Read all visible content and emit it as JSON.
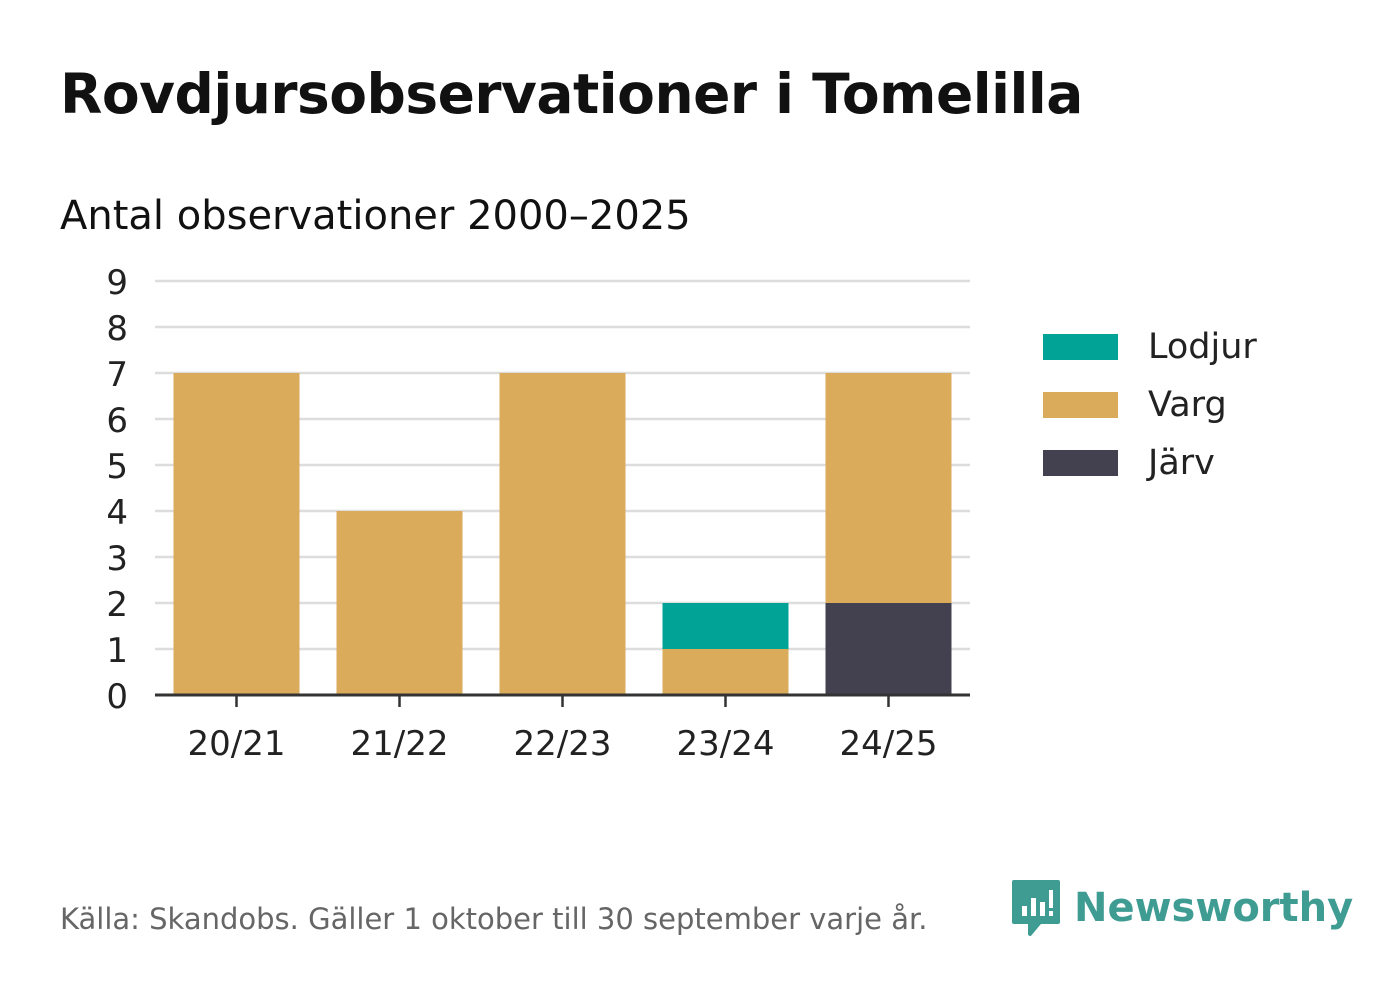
{
  "title": "Rovdjursobservationer i Tomelilla",
  "subtitle": "Antal observationer 2000–2025",
  "source": "Källa: Skandobs. Gäller 1 oktober till 30 september varje år.",
  "brand": "Newsworthy",
  "legend": [
    {
      "label": "Lodjur",
      "color": "#00a396"
    },
    {
      "label": "Varg",
      "color": "#d9ab5a"
    },
    {
      "label": "Järv",
      "color": "#434150"
    }
  ],
  "chart_data": {
    "type": "bar",
    "stacked": true,
    "title": "Rovdjursobservationer i Tomelilla",
    "subtitle": "Antal observationer 2000–2025",
    "xlabel": "",
    "ylabel": "",
    "categories": [
      "20/21",
      "21/22",
      "22/23",
      "23/24",
      "24/25"
    ],
    "ylim": [
      0,
      9
    ],
    "yticks": [
      0,
      1,
      2,
      3,
      4,
      5,
      6,
      7,
      8,
      9
    ],
    "grid": true,
    "legend_position": "right",
    "stack_order": [
      "Järv",
      "Varg",
      "Lodjur"
    ],
    "series": [
      {
        "name": "Lodjur",
        "color": "#00a396",
        "values": [
          0,
          0,
          0,
          1,
          0
        ]
      },
      {
        "name": "Varg",
        "color": "#d9ab5a",
        "values": [
          7,
          4,
          7,
          1,
          5
        ]
      },
      {
        "name": "Järv",
        "color": "#434150",
        "values": [
          0,
          0,
          0,
          0,
          2
        ]
      }
    ]
  }
}
